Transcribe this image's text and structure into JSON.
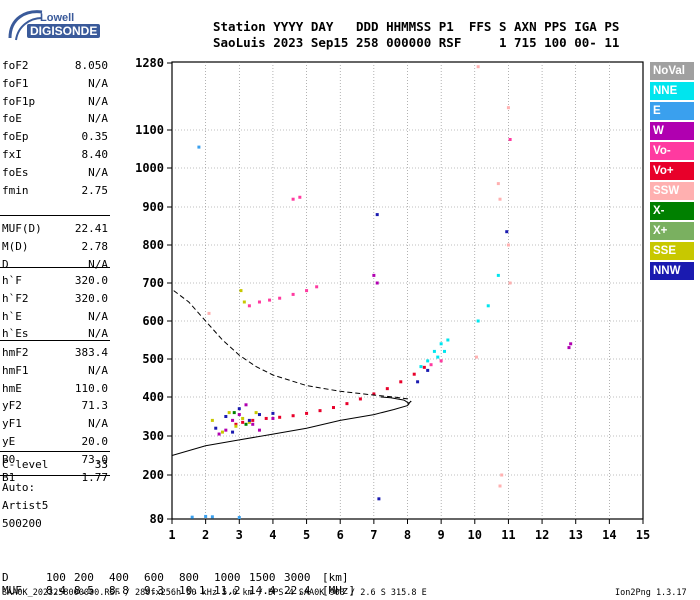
{
  "logo": {
    "line1": "Lowell",
    "line2": "DIGISONDE"
  },
  "header": {
    "labels": "Station YYYY DAY   DDD HHMMSS P1  FFS S AXN PPS IGA PS",
    "values": "SaoLuis 2023 Sep15 258 000000 RSF     1 715 100 00- 11"
  },
  "params": {
    "group1": [
      {
        "name": "foF2",
        "value": "8.050"
      },
      {
        "name": "foF1",
        "value": "N/A"
      },
      {
        "name": "foF1p",
        "value": "N/A"
      },
      {
        "name": "foE",
        "value": "N/A"
      },
      {
        "name": "foEp",
        "value": "0.35"
      },
      {
        "name": "fxI",
        "value": "8.40"
      },
      {
        "name": "foEs",
        "value": "N/A"
      },
      {
        "name": "fmin",
        "value": "2.75"
      }
    ],
    "group2": [
      {
        "name": "MUF(D)",
        "value": "22.41"
      },
      {
        "name": "M(D)",
        "value": "2.78"
      },
      {
        "name": "D",
        "value": "N/A"
      }
    ],
    "group3": [
      {
        "name": "h`F",
        "value": "320.0"
      },
      {
        "name": "h`F2",
        "value": "320.0"
      },
      {
        "name": "h`E",
        "value": "N/A"
      },
      {
        "name": "h`Es",
        "value": "N/A"
      }
    ],
    "group4": [
      {
        "name": "hmF2",
        "value": "383.4"
      },
      {
        "name": "hmF1",
        "value": "N/A"
      },
      {
        "name": "hmE",
        "value": "110.0"
      },
      {
        "name": "yF2",
        "value": "71.3"
      },
      {
        "name": "yF1",
        "value": "N/A"
      },
      {
        "name": "yE",
        "value": "20.0"
      },
      {
        "name": "B0",
        "value": "73.0"
      },
      {
        "name": "B1",
        "value": "1.77"
      }
    ],
    "group5": [
      {
        "name": "C-level",
        "value": "33"
      }
    ],
    "autoscaling": [
      "Auto:",
      "Artist5",
      "500200"
    ]
  },
  "legend": [
    {
      "label": "NoVal",
      "color": "#a0a0a0"
    },
    {
      "label": "NNE",
      "color": "#00e5ee"
    },
    {
      "label": "E",
      "color": "#3aa0ee"
    },
    {
      "label": "W",
      "color": "#b000b0"
    },
    {
      "label": "Vo-",
      "color": "#ff3aa0"
    },
    {
      "label": "Vo+",
      "color": "#e8002a"
    },
    {
      "label": "SSW",
      "color": "#ffb0b0"
    },
    {
      "label": "X-",
      "color": "#008000"
    },
    {
      "label": "X+",
      "color": "#7ab060"
    },
    {
      "label": "SSE",
      "color": "#c8c800"
    },
    {
      "label": "NNW",
      "color": "#1a1ab0"
    }
  ],
  "muf_table": {
    "d_label": "D",
    "d_values": [
      "100",
      "200",
      "400",
      "600",
      "800",
      "1000",
      "1500",
      "3000"
    ],
    "d_unit": "[km]",
    "muf_label": "MUF",
    "muf_values": [
      "8.4",
      "8.5",
      "8.8",
      "9.3",
      "10.1",
      "11.2",
      "14.4",
      "22.4"
    ],
    "muf_unit": "[MHz]"
  },
  "footer": {
    "left": "SAA0K_2023258000000.RSF / 280fx256h 50 kHz 5.0 km / DPS-4 SAA0K 903 / 2.6 S 315.8 E",
    "right": "Ion2Png 1.3.17"
  },
  "chart_data": {
    "type": "scatter",
    "x_ticks": [
      "1",
      "2",
      "3",
      "4",
      "5",
      "6",
      "7",
      "8",
      "9",
      "10",
      "11",
      "12",
      "13",
      "14",
      "15"
    ],
    "y_ticks": [
      "80",
      "200",
      "300",
      "400",
      "500",
      "600",
      "700",
      "800",
      "900",
      "1000",
      "1100",
      "1280"
    ],
    "xlim": [
      1,
      15
    ],
    "grid": true,
    "series": [
      {
        "color": "#e8002a",
        "points": [
          [
            2.9,
            330
          ],
          [
            3.1,
            335
          ],
          [
            3.4,
            340
          ],
          [
            3.8,
            345
          ],
          [
            4.2,
            348
          ],
          [
            4.6,
            352
          ],
          [
            5.0,
            358
          ],
          [
            5.4,
            365
          ],
          [
            5.8,
            373
          ],
          [
            6.2,
            383
          ],
          [
            6.6,
            395
          ],
          [
            7.0,
            408
          ],
          [
            7.4,
            422
          ],
          [
            7.8,
            440
          ],
          [
            8.2,
            460
          ],
          [
            8.5,
            478
          ]
        ]
      },
      {
        "color": "#b000b0",
        "points": [
          [
            2.4,
            305
          ],
          [
            2.6,
            315
          ],
          [
            2.8,
            340
          ],
          [
            3.0,
            355
          ],
          [
            3.2,
            380
          ],
          [
            3.4,
            330
          ],
          [
            3.6,
            315
          ],
          [
            4.0,
            345
          ],
          [
            7.0,
            720
          ],
          [
            7.1,
            700
          ],
          [
            12.8,
            530
          ],
          [
            12.85,
            540
          ]
        ]
      },
      {
        "color": "#c8c800",
        "points": [
          [
            2.2,
            340
          ],
          [
            2.5,
            310
          ],
          [
            2.7,
            360
          ],
          [
            2.9,
            325
          ],
          [
            3.1,
            345
          ],
          [
            3.3,
            335
          ],
          [
            3.5,
            360
          ],
          [
            3.05,
            680
          ],
          [
            3.15,
            650
          ]
        ]
      },
      {
        "color": "#1a1ab0",
        "points": [
          [
            2.3,
            320
          ],
          [
            2.6,
            350
          ],
          [
            2.8,
            310
          ],
          [
            3.0,
            370
          ],
          [
            3.3,
            340
          ],
          [
            3.6,
            355
          ],
          [
            4.0,
            358
          ],
          [
            7.1,
            880
          ],
          [
            7.15,
            135
          ],
          [
            8.3,
            440
          ],
          [
            8.6,
            470
          ],
          [
            10.95,
            835
          ]
        ]
      },
      {
        "color": "#00e5ee",
        "points": [
          [
            8.4,
            480
          ],
          [
            8.6,
            495
          ],
          [
            8.8,
            520
          ],
          [
            9.0,
            540
          ],
          [
            9.2,
            550
          ],
          [
            8.9,
            505
          ],
          [
            9.1,
            520
          ],
          [
            10.1,
            600
          ],
          [
            10.4,
            640
          ],
          [
            10.7,
            720
          ]
        ]
      },
      {
        "color": "#ff3aa0",
        "points": [
          [
            3.3,
            640
          ],
          [
            3.6,
            650
          ],
          [
            3.9,
            655
          ],
          [
            4.2,
            660
          ],
          [
            4.6,
            670
          ],
          [
            5.0,
            680
          ],
          [
            5.3,
            690
          ],
          [
            4.6,
            920
          ],
          [
            4.8,
            925
          ],
          [
            9.0,
            495
          ],
          [
            8.7,
            485
          ],
          [
            11.05,
            1075
          ]
        ]
      },
      {
        "color": "#ffb0b0",
        "points": [
          [
            10.1,
            1270
          ],
          [
            10.05,
            505
          ],
          [
            10.7,
            960
          ],
          [
            10.75,
            920
          ],
          [
            10.8,
            200
          ],
          [
            10.75,
            170
          ],
          [
            11.0,
            800
          ],
          [
            11.0,
            1160
          ],
          [
            11.05,
            700
          ],
          [
            2.1,
            620
          ]
        ]
      },
      {
        "color": "#3aa0ee",
        "points": [
          [
            1.8,
            1055
          ],
          [
            2.0,
            87
          ],
          [
            2.2,
            86
          ],
          [
            1.6,
            85
          ],
          [
            3.0,
            84
          ]
        ]
      },
      {
        "color": "#008000",
        "points": [
          [
            2.85,
            360
          ],
          [
            3.2,
            330
          ]
        ]
      }
    ],
    "profile_solid": [
      [
        1.0,
        250
      ],
      [
        2.0,
        275
      ],
      [
        3.0,
        290
      ],
      [
        4.0,
        305
      ],
      [
        5.0,
        320
      ],
      [
        6.0,
        340
      ],
      [
        7.0,
        355
      ],
      [
        7.6,
        368
      ],
      [
        8.0,
        378
      ],
      [
        8.05,
        383
      ],
      [
        7.9,
        392
      ],
      [
        7.5,
        398
      ],
      [
        7.2,
        400
      ]
    ],
    "profile_dashed": [
      [
        1.05,
        680
      ],
      [
        1.5,
        650
      ],
      [
        2.0,
        600
      ],
      [
        2.5,
        550
      ],
      [
        3.0,
        510
      ],
      [
        3.5,
        480
      ],
      [
        4.0,
        458
      ],
      [
        5.0,
        430
      ],
      [
        6.0,
        415
      ],
      [
        7.0,
        405
      ],
      [
        7.6,
        400
      ],
      [
        8.0,
        395
      ],
      [
        8.1,
        388
      ],
      [
        8.0,
        383
      ]
    ]
  }
}
